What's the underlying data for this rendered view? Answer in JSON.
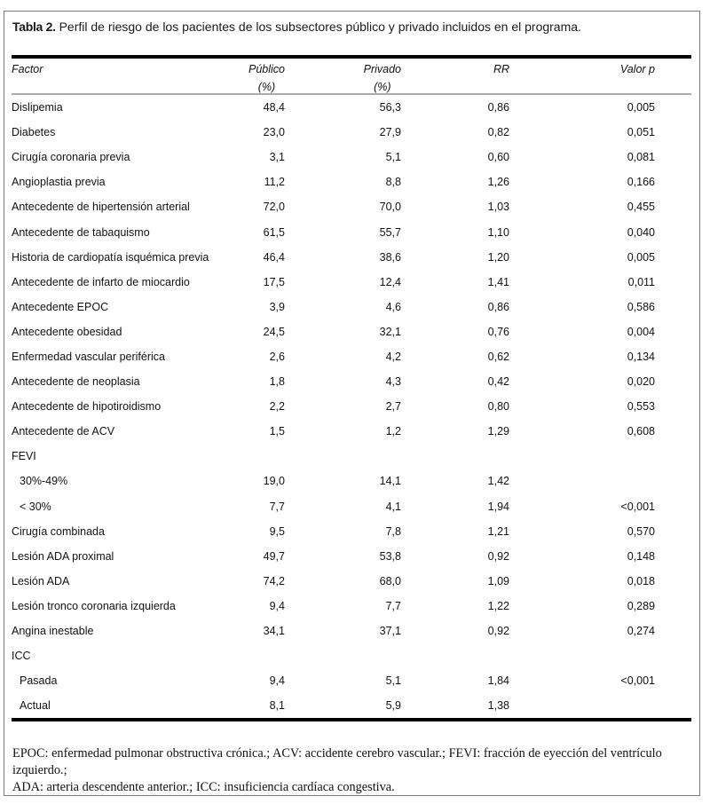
{
  "title": {
    "label": "Tabla 2.",
    "text": " Perfil de riesgo de los pacientes de los subsectores público y privado incluidos en el programa."
  },
  "table": {
    "columns": [
      {
        "label": "Factor",
        "sub": ""
      },
      {
        "label": "Público",
        "sub": "(%)"
      },
      {
        "label": "Privado",
        "sub": "(%)"
      },
      {
        "label": "RR",
        "sub": ""
      },
      {
        "label": "Valor p",
        "sub": ""
      }
    ],
    "rows": [
      {
        "factor": "Dislipemia",
        "publico": "48,4",
        "privado": "56,3",
        "rr": "0,86",
        "p": "0,005",
        "indent": false
      },
      {
        "factor": "Diabetes",
        "publico": "23,0",
        "privado": "27,9",
        "rr": "0,82",
        "p": "0,051",
        "indent": false
      },
      {
        "factor": "Cirugía coronaria previa",
        "publico": "3,1",
        "privado": "5,1",
        "rr": "0,60",
        "p": "0,081",
        "indent": false
      },
      {
        "factor": "Angioplastia previa",
        "publico": "11,2",
        "privado": "8,8",
        "rr": "1,26",
        "p": "0,166",
        "indent": false
      },
      {
        "factor": "Antecedente de hipertensión arterial",
        "publico": "72,0",
        "privado": "70,0",
        "rr": "1,03",
        "p": "0,455",
        "indent": false
      },
      {
        "factor": "Antecedente de tabaquismo",
        "publico": "61,5",
        "privado": "55,7",
        "rr": "1,10",
        "p": "0,040",
        "indent": false
      },
      {
        "factor": "Historia de cardiopatía isquémica previa",
        "publico": "46,4",
        "privado": "38,6",
        "rr": "1,20",
        "p": "0,005",
        "indent": false
      },
      {
        "factor": "Antecedente de infarto de miocardio",
        "publico": "17,5",
        "privado": "12,4",
        "rr": "1,41",
        "p": "0,011",
        "indent": false
      },
      {
        "factor": "Antecedente EPOC",
        "publico": "3,9",
        "privado": "4,6",
        "rr": "0,86",
        "p": "0,586",
        "indent": false
      },
      {
        "factor": "Antecedente obesidad",
        "publico": "24,5",
        "privado": "32,1",
        "rr": "0,76",
        "p": "0,004",
        "indent": false
      },
      {
        "factor": "Enfermedad vascular periférica",
        "publico": "2,6",
        "privado": "4,2",
        "rr": "0,62",
        "p": "0,134",
        "indent": false
      },
      {
        "factor": "Antecedente de neoplasia",
        "publico": "1,8",
        "privado": "4,3",
        "rr": "0,42",
        "p": "0,020",
        "indent": false
      },
      {
        "factor": "Antecedente de hipotiroidismo",
        "publico": "2,2",
        "privado": "2,7",
        "rr": "0,80",
        "p": "0,553",
        "indent": false
      },
      {
        "factor": "Antecedente de ACV",
        "publico": "1,5",
        "privado": "1,2",
        "rr": "1,29",
        "p": "0,608",
        "indent": false
      },
      {
        "factor": "FEVI",
        "publico": "",
        "privado": "",
        "rr": "",
        "p": "",
        "indent": false
      },
      {
        "factor": "30%-49%",
        "publico": "19,0",
        "privado": "14,1",
        "rr": "1,42",
        "p": "",
        "indent": true
      },
      {
        "factor": "< 30%",
        "publico": "7,7",
        "privado": "4,1",
        "rr": "1,94",
        "p": "<0,001",
        "indent": true
      },
      {
        "factor": "Cirugía combinada",
        "publico": "9,5",
        "privado": "7,8",
        "rr": "1,21",
        "p": "0,570",
        "indent": false
      },
      {
        "factor": "Lesión ADA proximal",
        "publico": "49,7",
        "privado": "53,8",
        "rr": "0,92",
        "p": "0,148",
        "indent": false
      },
      {
        "factor": "Lesión ADA",
        "publico": "74,2",
        "privado": "68,0",
        "rr": "1,09",
        "p": "0,018",
        "indent": false
      },
      {
        "factor": "Lesión tronco coronaria izquierda",
        "publico": "9,4",
        "privado": "7,7",
        "rr": "1,22",
        "p": "0,289",
        "indent": false
      },
      {
        "factor": "Angina inestable",
        "publico": "34,1",
        "privado": "37,1",
        "rr": "0,92",
        "p": "0,274",
        "indent": false
      },
      {
        "factor": "ICC",
        "publico": "",
        "privado": "",
        "rr": "",
        "p": "",
        "indent": false
      },
      {
        "factor": "Pasada",
        "publico": "9,4",
        "privado": "5,1",
        "rr": "1,84",
        "p": "<0,001",
        "indent": true
      },
      {
        "factor": "Actual",
        "publico": "8,1",
        "privado": "5,9",
        "rr": "1,38",
        "p": "",
        "indent": true
      }
    ]
  },
  "footnote": {
    "lines": [
      "EPOC: enfermedad pulmonar obstructiva crónica.; ACV: accidente cerebro vascular.; FEVI: fracción de eyección del ventrículo izquierdo.;",
      "ADA: arteria descendente anterior.; ICC: insuficiencia cardíaca congestiva."
    ]
  },
  "colors": {
    "rule_black": "#000000",
    "rule_gray": "#ababab",
    "outer_border": "#7c7c7c",
    "text": "#111111"
  }
}
